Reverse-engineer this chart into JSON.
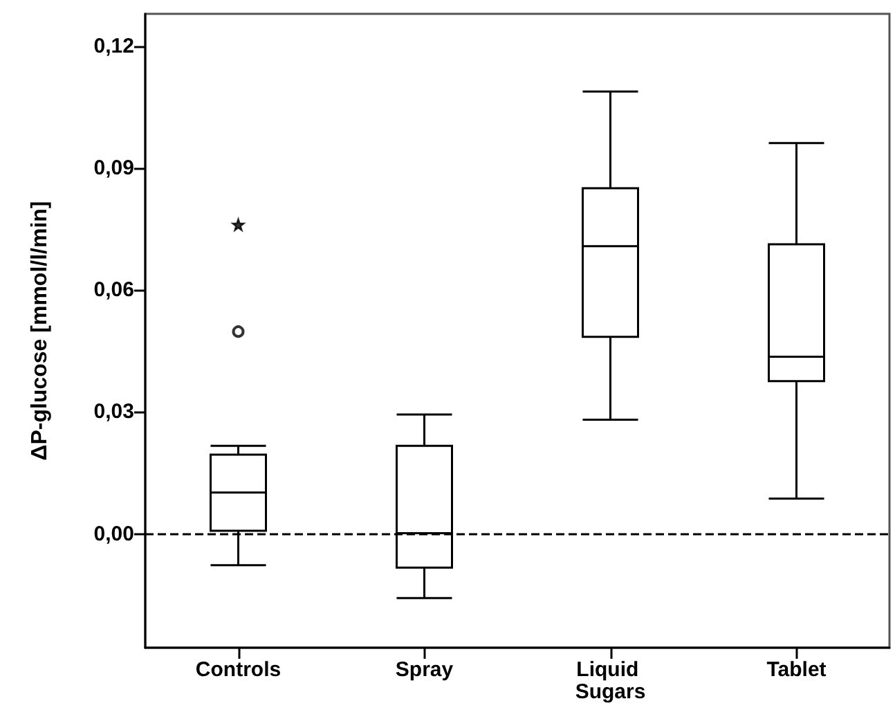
{
  "chart_data": {
    "type": "box",
    "ylabel": "ΔP-glucose [mmol/l/min]",
    "categories": [
      "Controls",
      "Spray",
      "Liquid Sugars",
      "Tablet"
    ],
    "boxes": [
      {
        "low": -0.0077,
        "q1": 0.0008,
        "median": 0.0102,
        "q3": 0.0195,
        "high": 0.0217,
        "outliers": [
          0.0498
        ]
      },
      {
        "low": -0.0158,
        "q1": -0.0083,
        "median": 0.0002,
        "q3": 0.0217,
        "high": 0.0294
      },
      {
        "low": 0.0281,
        "q1": 0.0485,
        "median": 0.0708,
        "q3": 0.0851,
        "high": 0.1089
      },
      {
        "low": 0.0087,
        "q1": 0.0376,
        "median": 0.0436,
        "q3": 0.0713,
        "high": 0.0962
      }
    ],
    "series": [
      {
        "type": "scatter",
        "x": [
          "Controls"
        ],
        "values": [
          0.0761
        ],
        "marker": "star",
        "color": "#000000"
      }
    ],
    "color": "#000000",
    "ylim": [
      -0.028,
      0.128
    ],
    "yticks": [
      {
        "value": 0,
        "label": "0,00"
      },
      {
        "value": 0.03,
        "label": "0,03"
      },
      {
        "value": 0.06,
        "label": "0,06"
      },
      {
        "value": 0.09,
        "label": "0,09"
      },
      {
        "value": 0.12,
        "label": "0,12"
      }
    ],
    "ref_lines": [
      {
        "axis": "y",
        "value": 0,
        "line_style": "dashed",
        "color": "#000000"
      }
    ],
    "grid": false
  }
}
